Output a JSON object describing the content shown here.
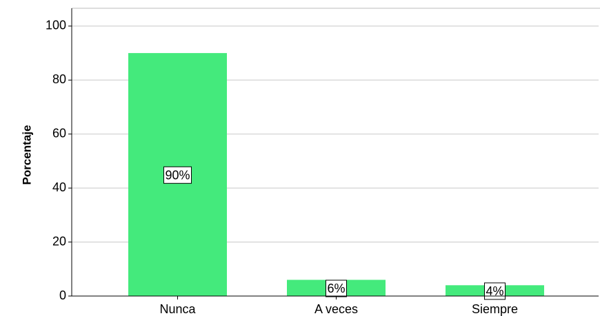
{
  "chart_data": {
    "type": "bar",
    "y_label": "Porcentaje",
    "categories": [
      "Nunca",
      "A veces",
      "Siempre"
    ],
    "values": [
      90,
      6,
      4
    ],
    "value_labels": [
      "90%",
      "6%",
      "4%"
    ],
    "color": "#44ea7c",
    "ylim": [
      0,
      106.6
    ],
    "yticks": [
      0,
      20,
      40,
      60,
      80,
      100
    ],
    "grid": true
  }
}
